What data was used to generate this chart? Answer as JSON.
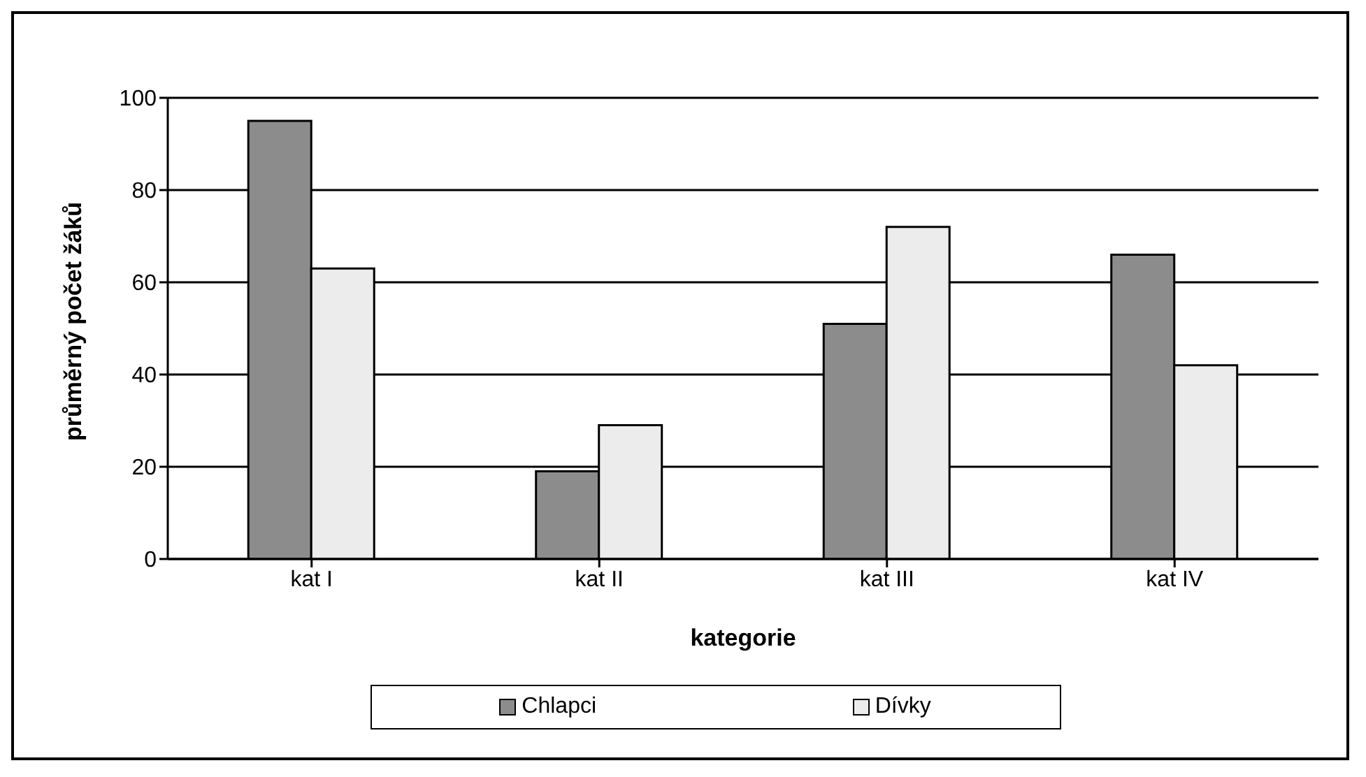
{
  "chart_data": {
    "type": "bar",
    "xlabel": "kategorie",
    "ylabel": "průměrný počet žáků",
    "categories": [
      "kat I",
      "kat II",
      "kat III",
      "kat IV"
    ],
    "series": [
      {
        "name": "Chlapci",
        "color": "#8c8c8c",
        "values": [
          95,
          19,
          51,
          66
        ]
      },
      {
        "name": "Dívky",
        "color": "#ececec",
        "values": [
          63,
          29,
          72,
          42
        ]
      }
    ],
    "ylim": [
      0,
      100
    ],
    "yticks": [
      0,
      20,
      40,
      60,
      80,
      100
    ],
    "grid": "y",
    "legend": "bottom"
  }
}
